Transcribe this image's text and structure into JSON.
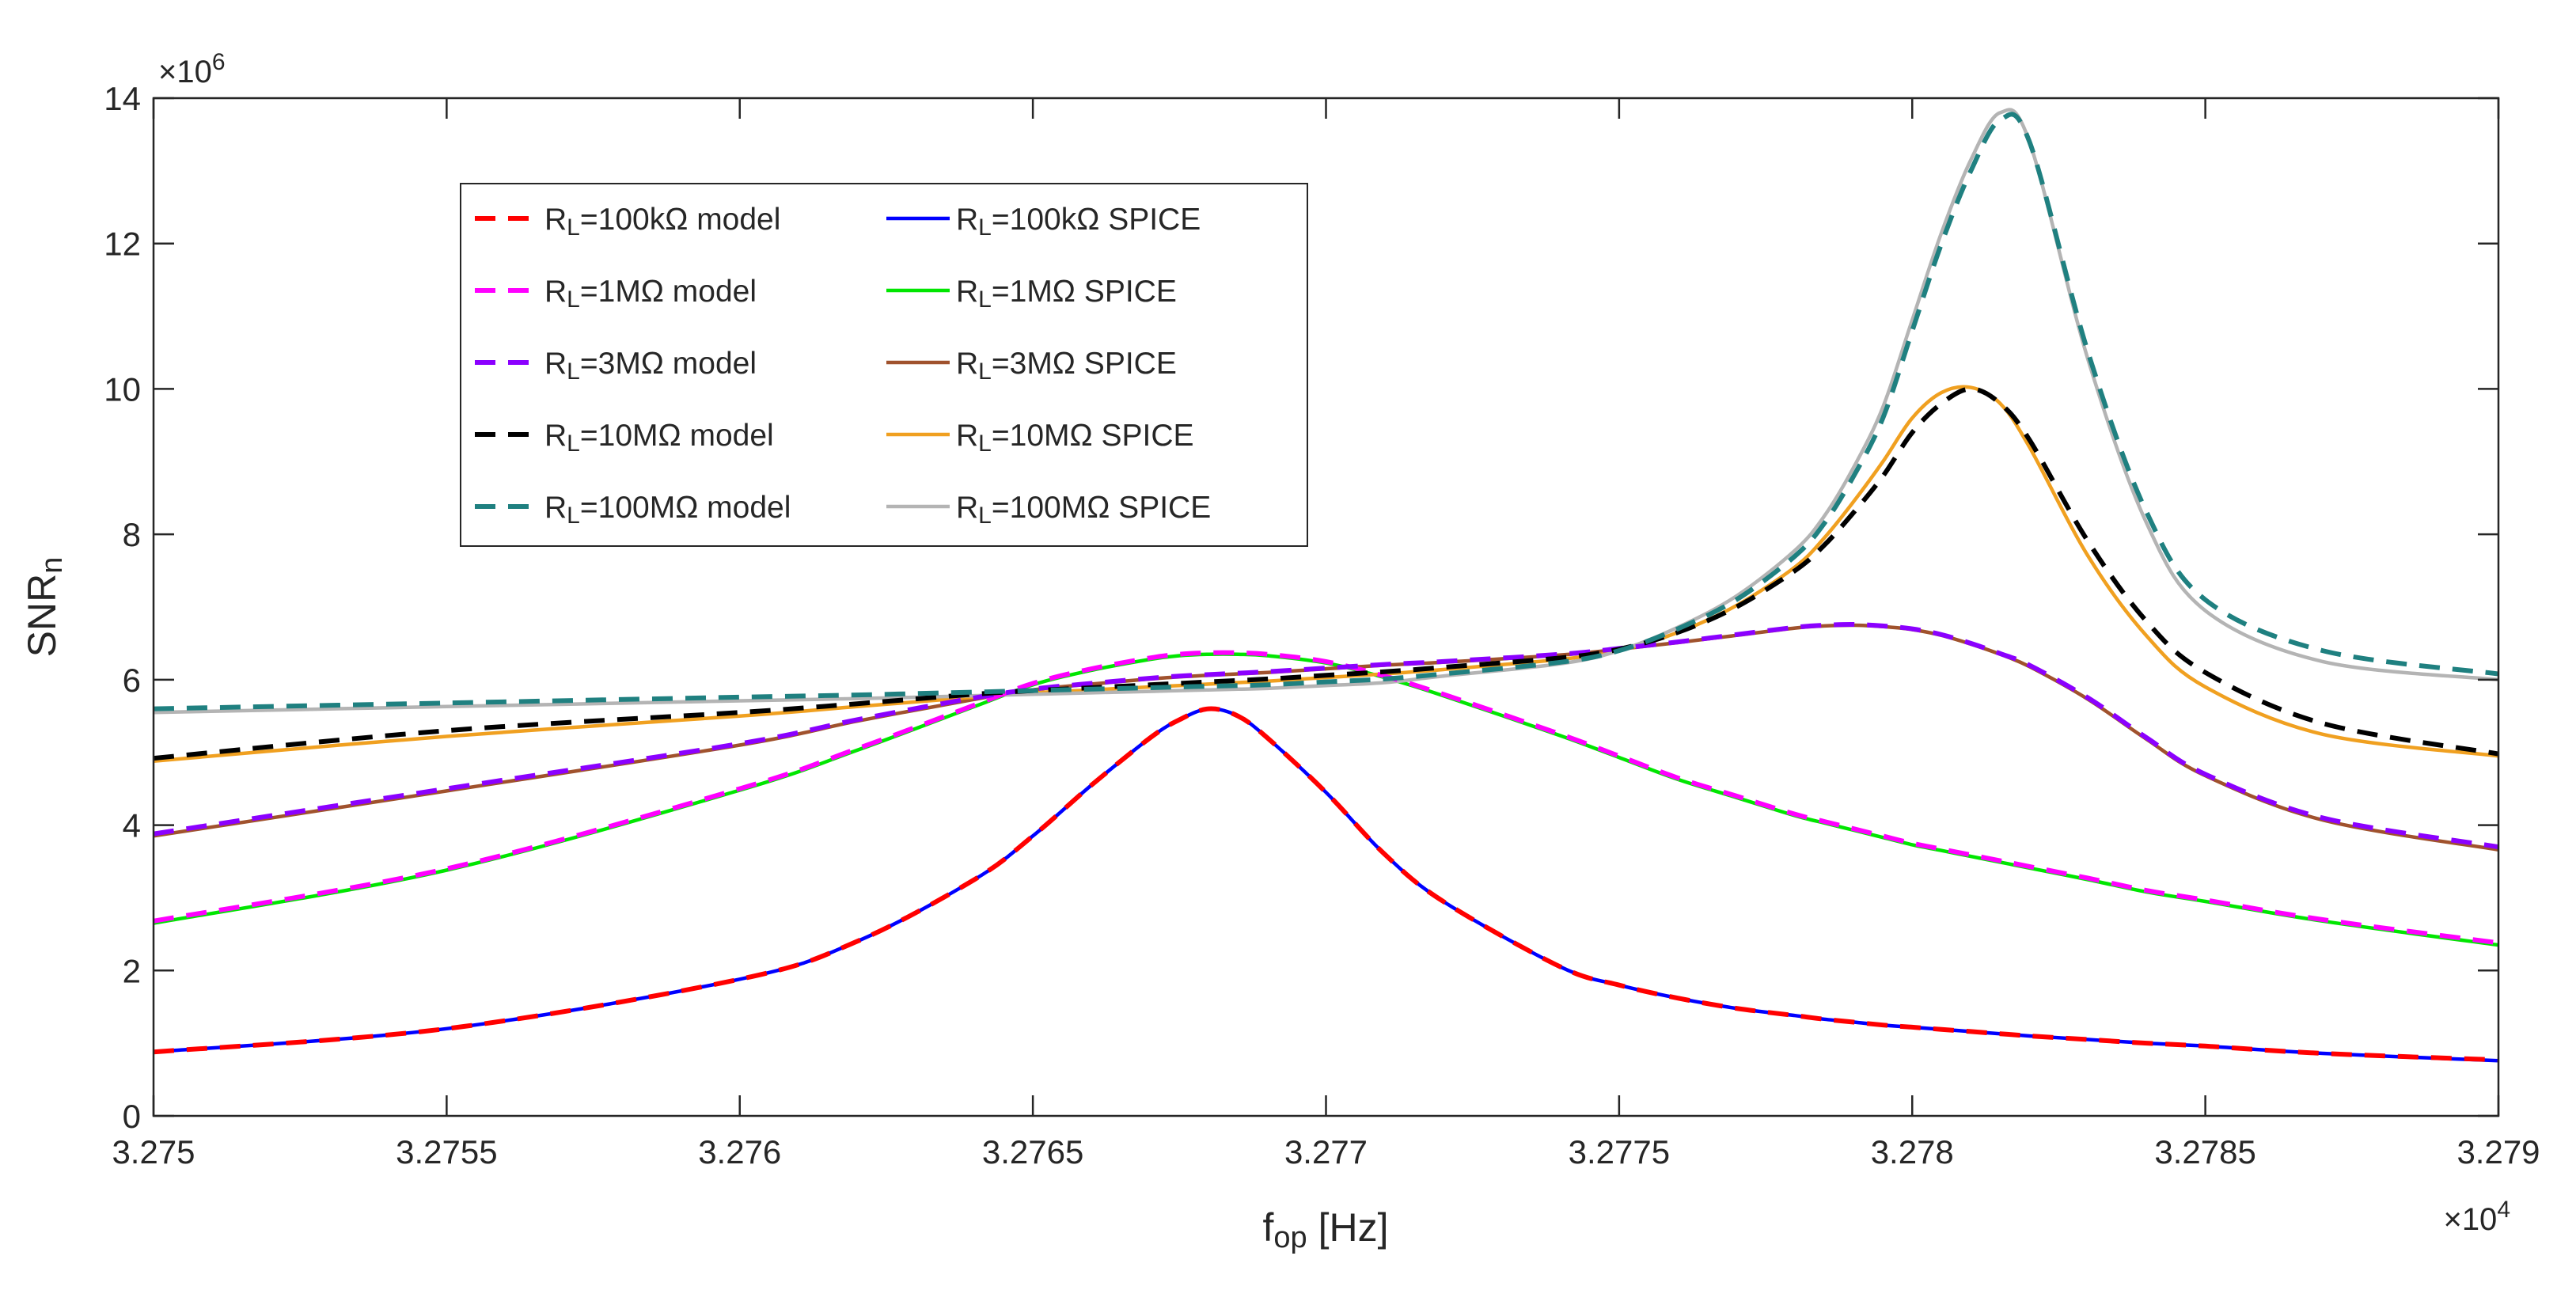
{
  "chart_data": {
    "type": "line",
    "title": "",
    "xlabel": {
      "main": "f",
      "sub": "op",
      "rest": " [Hz]"
    },
    "ylabel": {
      "main": "SNR",
      "sub": "n"
    },
    "x_exponent": {
      "base": "×10",
      "exp": "4"
    },
    "y_exponent": {
      "base": "×10",
      "exp": "6"
    },
    "xlim": [
      3.275,
      3.279
    ],
    "ylim": [
      0,
      14
    ],
    "x_ticks": [
      3.275,
      3.2755,
      3.276,
      3.2765,
      3.277,
      3.2775,
      3.278,
      3.2785,
      3.279
    ],
    "x_tick_labels": [
      "3.275",
      "3.2755",
      "3.276",
      "3.2765",
      "3.277",
      "3.2775",
      "3.278",
      "3.2785",
      "3.279"
    ],
    "y_ticks": [
      0,
      2,
      4,
      6,
      8,
      10,
      12,
      14
    ],
    "y_tick_labels": [
      "0",
      "2",
      "4",
      "6",
      "8",
      "10",
      "12",
      "14"
    ],
    "grid": false,
    "legend_position": "upper-left",
    "x": [
      3.275,
      3.2755,
      3.276,
      3.2762,
      3.2764,
      3.2765,
      3.2766,
      3.2767,
      3.27675,
      3.2768,
      3.27685,
      3.2769,
      3.277,
      3.2771,
      3.2772,
      3.2774,
      3.2775,
      3.2776,
      3.2777,
      3.2778,
      3.27785,
      3.2779,
      3.27795,
      3.278,
      3.27805,
      3.2781,
      3.27815,
      3.2782,
      3.2783,
      3.2784,
      3.2785,
      3.2787,
      3.279
    ],
    "series": [
      {
        "name_prefix": "R",
        "name_sub": "L",
        "name_rest": "=100kΩ model",
        "kind": "model",
        "color": "#ff0000",
        "values": [
          0.88,
          1.2,
          1.88,
          2.4,
          3.25,
          3.85,
          4.55,
          5.2,
          5.45,
          5.6,
          5.5,
          5.2,
          4.45,
          3.6,
          2.95,
          2.05,
          1.8,
          1.62,
          1.48,
          1.38,
          1.33,
          1.29,
          1.25,
          1.22,
          1.19,
          1.16,
          1.13,
          1.1,
          1.05,
          1.0,
          0.96,
          0.86,
          0.77
        ]
      },
      {
        "name_prefix": "R",
        "name_sub": "L",
        "name_rest": "=1MΩ model",
        "kind": "model",
        "color": "#ff00ff",
        "values": [
          2.68,
          3.4,
          4.5,
          5.05,
          5.65,
          5.95,
          6.15,
          6.3,
          6.35,
          6.37,
          6.37,
          6.35,
          6.25,
          6.05,
          5.8,
          5.25,
          4.95,
          4.65,
          4.4,
          4.15,
          4.05,
          3.95,
          3.85,
          3.75,
          3.67,
          3.59,
          3.51,
          3.43,
          3.27,
          3.1,
          2.97,
          2.7,
          2.38
        ]
      },
      {
        "name_prefix": "R",
        "name_sub": "L",
        "name_rest": "=3MΩ model",
        "kind": "model",
        "color": "#8b00ff",
        "values": [
          3.88,
          4.5,
          5.12,
          5.45,
          5.75,
          5.87,
          5.95,
          6.02,
          6.05,
          6.07,
          6.09,
          6.11,
          6.16,
          6.21,
          6.25,
          6.35,
          6.43,
          6.52,
          6.62,
          6.72,
          6.75,
          6.76,
          6.74,
          6.7,
          6.62,
          6.5,
          6.36,
          6.2,
          5.75,
          5.2,
          4.7,
          4.1,
          3.7
        ]
      },
      {
        "name_prefix": "R",
        "name_sub": "L",
        "name_rest": "=10MΩ model",
        "kind": "model",
        "color": "#000000",
        "values": [
          4.92,
          5.3,
          5.55,
          5.67,
          5.8,
          5.85,
          5.89,
          5.93,
          5.95,
          5.97,
          5.99,
          6.01,
          6.06,
          6.11,
          6.17,
          6.3,
          6.42,
          6.65,
          7.0,
          7.5,
          7.85,
          8.3,
          8.8,
          9.4,
          9.8,
          10.0,
          9.8,
          9.3,
          7.9,
          6.8,
          6.1,
          5.4,
          4.98
        ]
      },
      {
        "name_prefix": "R",
        "name_sub": "L",
        "name_rest": "=100MΩ model",
        "kind": "model",
        "color": "#1f8080",
        "values": [
          5.6,
          5.68,
          5.76,
          5.79,
          5.83,
          5.85,
          5.87,
          5.89,
          5.9,
          5.91,
          5.92,
          5.93,
          5.97,
          6.01,
          6.08,
          6.24,
          6.4,
          6.7,
          7.1,
          7.7,
          8.15,
          8.8,
          9.6,
          10.8,
          12.0,
          13.0,
          13.7,
          13.4,
          10.5,
          8.3,
          7.1,
          6.4,
          6.08
        ]
      },
      {
        "name_prefix": "R",
        "name_sub": "L",
        "name_rest": "=100kΩ SPICE",
        "kind": "spice",
        "color": "#0000ff",
        "values": [
          0.88,
          1.2,
          1.88,
          2.4,
          3.25,
          3.85,
          4.55,
          5.2,
          5.45,
          5.6,
          5.5,
          5.2,
          4.45,
          3.6,
          2.95,
          2.05,
          1.8,
          1.62,
          1.48,
          1.38,
          1.33,
          1.29,
          1.25,
          1.22,
          1.19,
          1.16,
          1.13,
          1.1,
          1.05,
          1.0,
          0.96,
          0.86,
          0.76
        ]
      },
      {
        "name_prefix": "R",
        "name_sub": "L",
        "name_rest": "=1MΩ SPICE",
        "kind": "spice",
        "color": "#00e600",
        "values": [
          2.65,
          3.38,
          4.48,
          5.03,
          5.63,
          5.93,
          6.13,
          6.28,
          6.33,
          6.35,
          6.35,
          6.33,
          6.23,
          6.03,
          5.78,
          5.23,
          4.93,
          4.63,
          4.38,
          4.13,
          4.03,
          3.93,
          3.83,
          3.73,
          3.65,
          3.57,
          3.49,
          3.41,
          3.25,
          3.08,
          2.95,
          2.68,
          2.35
        ]
      },
      {
        "name_prefix": "R",
        "name_sub": "L",
        "name_rest": "=3MΩ SPICE",
        "kind": "spice",
        "color": "#a0522d",
        "values": [
          3.85,
          4.47,
          5.1,
          5.43,
          5.73,
          5.86,
          5.94,
          6.01,
          6.04,
          6.06,
          6.08,
          6.1,
          6.15,
          6.2,
          6.24,
          6.34,
          6.42,
          6.51,
          6.61,
          6.71,
          6.74,
          6.75,
          6.73,
          6.69,
          6.61,
          6.49,
          6.35,
          6.18,
          5.73,
          5.18,
          4.68,
          4.07,
          3.66
        ]
      },
      {
        "name_prefix": "R",
        "name_sub": "L",
        "name_rest": "=10MΩ SPICE",
        "kind": "spice",
        "color": "#f0a020",
        "values": [
          4.88,
          5.22,
          5.5,
          5.63,
          5.76,
          5.82,
          5.86,
          5.9,
          5.92,
          5.94,
          5.96,
          5.98,
          6.03,
          6.08,
          6.14,
          6.28,
          6.4,
          6.65,
          7.02,
          7.55,
          7.95,
          8.45,
          9.0,
          9.6,
          9.95,
          10.02,
          9.8,
          9.2,
          7.7,
          6.6,
          5.9,
          5.25,
          4.95
        ]
      },
      {
        "name_prefix": "R",
        "name_sub": "L",
        "name_rest": "=100MΩ SPICE",
        "kind": "spice",
        "color": "#b4b4b4",
        "values": [
          5.55,
          5.63,
          5.71,
          5.74,
          5.78,
          5.8,
          5.82,
          5.84,
          5.85,
          5.86,
          5.87,
          5.88,
          5.92,
          5.96,
          6.05,
          6.22,
          6.4,
          6.72,
          7.15,
          7.78,
          8.25,
          8.92,
          9.75,
          10.95,
          12.15,
          13.15,
          13.8,
          13.4,
          10.4,
          8.15,
          6.95,
          6.25,
          6.0
        ]
      }
    ]
  }
}
